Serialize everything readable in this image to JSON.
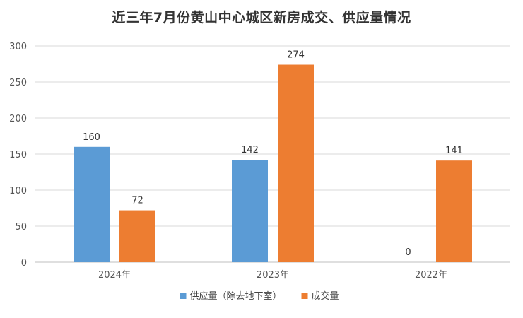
{
  "chart_data": {
    "type": "bar",
    "title": "近三年7月份黄山中心城区新房成交、供应量情况",
    "categories": [
      "2024年",
      "2023年",
      "2022年"
    ],
    "series": [
      {
        "name": "供应量（除去地下室）",
        "values": [
          160,
          142,
          0
        ],
        "color": "#5b9bd5"
      },
      {
        "name": "成交量",
        "values": [
          72,
          274,
          141
        ],
        "color": "#ed7d31"
      }
    ],
    "yticks": [
      0,
      50,
      100,
      150,
      200,
      250,
      300
    ],
    "ylim": [
      0,
      300
    ],
    "grid": true,
    "legend": "bottom",
    "xlabel": "",
    "ylabel": ""
  }
}
